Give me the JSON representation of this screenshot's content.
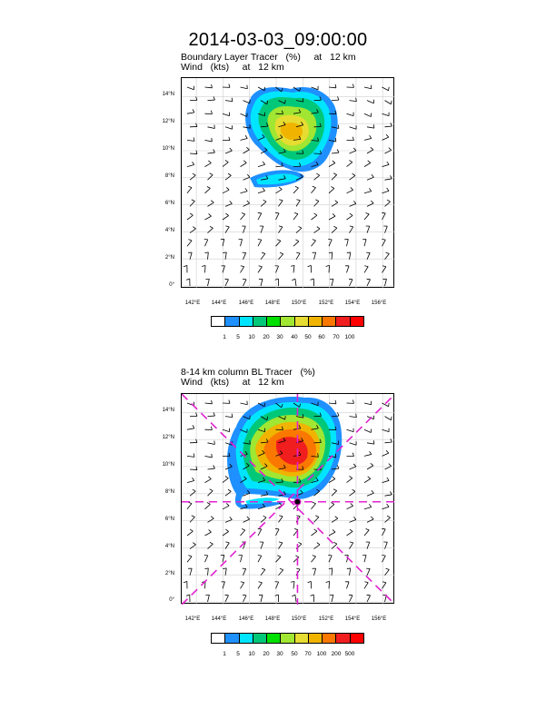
{
  "main_title": "2014-03-03_09:00:00",
  "panels": [
    {
      "title_line1": "Boundary Layer Tracer   (%)     at   12 km",
      "title_line2": "Wind   (kts)     at   12 km",
      "lat_labels": [
        "14°N",
        "12°N",
        "10°N",
        "8°N",
        "6°N",
        "4°N",
        "2°N",
        "0°"
      ],
      "lon_labels": [
        "142°E",
        "144°E",
        "146°E",
        "148°E",
        "150°E",
        "152°E",
        "154°E",
        "156°E"
      ],
      "colorbar_labels": [
        "1",
        "5",
        "10",
        "20",
        "30",
        "40",
        "50",
        "60",
        "70",
        "100"
      ]
    },
    {
      "title_line1": "8-14 km column BL Tracer   (%)",
      "title_line2": "Wind   (kts)     at   12 km",
      "lat_labels": [
        "14°N",
        "12°N",
        "10°N",
        "8°N",
        "6°N",
        "4°N",
        "2°N",
        "0°"
      ],
      "lon_labels": [
        "142°E",
        "144°E",
        "146°E",
        "148°E",
        "150°E",
        "152°E",
        "154°E",
        "156°E"
      ],
      "colorbar_labels": [
        "1",
        "5",
        "10",
        "20",
        "30",
        "50",
        "70",
        "100",
        "200",
        "500"
      ]
    }
  ],
  "colorbar_colors": [
    "#ffffff",
    "#1e90ff",
    "#00e5ff",
    "#00c878",
    "#00e000",
    "#a0e632",
    "#e6dc32",
    "#f0b400",
    "#fa7800",
    "#f01e1e",
    "#ff0000"
  ],
  "center_marker": {
    "lon": 149.6,
    "lat": 7.4
  },
  "guide_line_color": "#e020d0"
}
